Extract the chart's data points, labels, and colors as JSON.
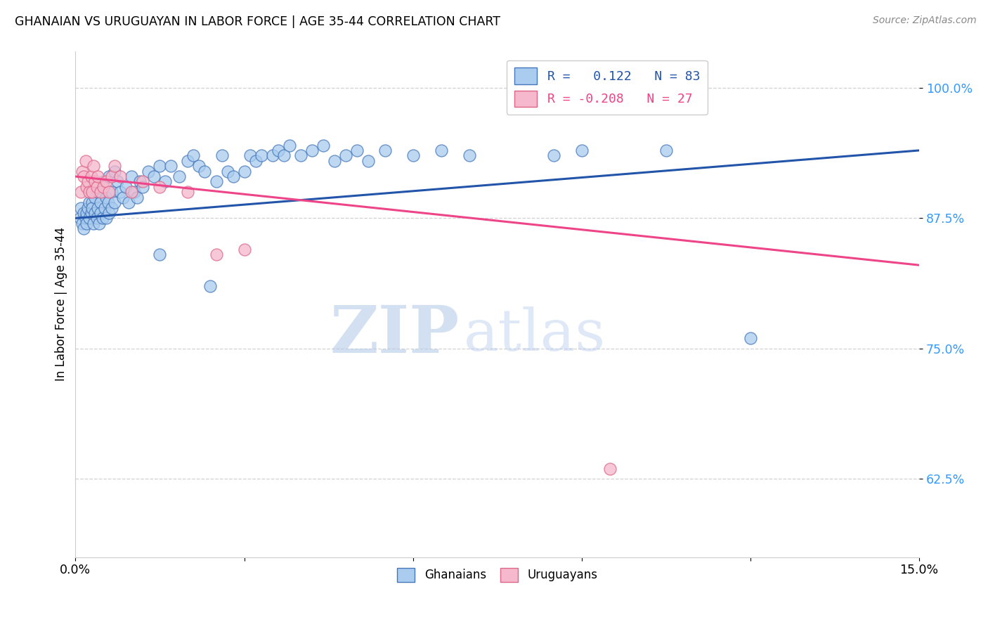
{
  "title": "GHANAIAN VS URUGUAYAN IN LABOR FORCE | AGE 35-44 CORRELATION CHART",
  "source": "Source: ZipAtlas.com",
  "ylabel": "In Labor Force | Age 35-44",
  "xlim": [
    0.0,
    15.0
  ],
  "ylim": [
    55.0,
    103.5
  ],
  "yticks": [
    62.5,
    75.0,
    87.5,
    100.0
  ],
  "xticks": [
    0.0,
    3.0,
    6.0,
    9.0,
    12.0,
    15.0
  ],
  "blue_color": "#aaccee",
  "blue_edge": "#4477bb",
  "pink_color": "#f5b8cc",
  "pink_edge": "#dd6688",
  "blue_line_color": "#2255aa",
  "pink_line_color": "#ee4488",
  "watermark_color": "#dce8f8",
  "blue_scatter_x": [
    0.08,
    0.1,
    0.12,
    0.15,
    0.15,
    0.18,
    0.2,
    0.2,
    0.22,
    0.25,
    0.25,
    0.28,
    0.3,
    0.3,
    0.32,
    0.35,
    0.35,
    0.38,
    0.4,
    0.4,
    0.42,
    0.45,
    0.45,
    0.48,
    0.5,
    0.52,
    0.55,
    0.55,
    0.58,
    0.6,
    0.6,
    0.65,
    0.65,
    0.7,
    0.7,
    0.75,
    0.8,
    0.85,
    0.9,
    0.95,
    1.0,
    1.05,
    1.1,
    1.15,
    1.2,
    1.3,
    1.4,
    1.5,
    1.6,
    1.7,
    1.85,
    2.0,
    2.1,
    2.2,
    2.3,
    2.5,
    2.6,
    2.7,
    2.8,
    3.0,
    3.1,
    3.2,
    3.3,
    3.5,
    3.6,
    3.7,
    3.8,
    4.0,
    4.2,
    4.4,
    4.6,
    4.8,
    5.0,
    5.2,
    5.5,
    6.0,
    6.5,
    7.0,
    8.5,
    9.0,
    10.5,
    12.0,
    1.5,
    2.4
  ],
  "blue_scatter_y": [
    87.5,
    88.5,
    87.0,
    88.0,
    86.5,
    87.5,
    88.0,
    87.0,
    88.5,
    89.0,
    87.5,
    88.0,
    89.0,
    88.5,
    87.0,
    89.5,
    88.0,
    87.5,
    90.0,
    88.5,
    87.0,
    89.0,
    88.0,
    87.5,
    91.0,
    88.5,
    89.5,
    87.5,
    89.0,
    91.5,
    88.0,
    90.0,
    88.5,
    92.0,
    89.0,
    91.0,
    90.0,
    89.5,
    90.5,
    89.0,
    91.5,
    90.0,
    89.5,
    91.0,
    90.5,
    92.0,
    91.5,
    92.5,
    91.0,
    92.5,
    91.5,
    93.0,
    93.5,
    92.5,
    92.0,
    91.0,
    93.5,
    92.0,
    91.5,
    92.0,
    93.5,
    93.0,
    93.5,
    93.5,
    94.0,
    93.5,
    94.5,
    93.5,
    94.0,
    94.5,
    93.0,
    93.5,
    94.0,
    93.0,
    94.0,
    93.5,
    94.0,
    93.5,
    93.5,
    94.0,
    94.0,
    76.0,
    84.0,
    81.0
  ],
  "pink_scatter_x": [
    0.1,
    0.12,
    0.15,
    0.18,
    0.2,
    0.22,
    0.25,
    0.28,
    0.3,
    0.32,
    0.35,
    0.38,
    0.4,
    0.45,
    0.5,
    0.55,
    0.6,
    0.65,
    0.7,
    0.8,
    1.0,
    1.2,
    1.5,
    2.0,
    2.5,
    3.0,
    9.5
  ],
  "pink_scatter_y": [
    90.0,
    92.0,
    91.5,
    93.0,
    90.5,
    91.0,
    90.0,
    91.5,
    90.0,
    92.5,
    91.0,
    90.5,
    91.5,
    90.0,
    90.5,
    91.0,
    90.0,
    91.5,
    92.5,
    91.5,
    90.0,
    91.0,
    90.5,
    90.0,
    84.0,
    84.5,
    63.5
  ],
  "blue_line_x0": 0.0,
  "blue_line_x1": 15.0,
  "blue_line_y0": 87.5,
  "blue_line_y1": 94.0,
  "pink_line_x0": 0.0,
  "pink_line_x1": 15.0,
  "pink_line_y0": 91.5,
  "pink_line_y1": 83.0
}
